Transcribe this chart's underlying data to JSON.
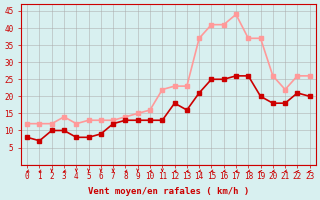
{
  "x": [
    0,
    1,
    2,
    3,
    4,
    5,
    6,
    7,
    8,
    9,
    10,
    11,
    12,
    13,
    14,
    15,
    16,
    17,
    18,
    19,
    20,
    21,
    22,
    23
  ],
  "wind_avg": [
    8,
    7,
    10,
    10,
    8,
    8,
    9,
    12,
    13,
    13,
    13,
    13,
    18,
    16,
    21,
    25,
    25,
    26,
    26,
    20,
    18,
    18,
    21,
    20
  ],
  "wind_gust": [
    12,
    12,
    12,
    14,
    12,
    13,
    13,
    13,
    14,
    15,
    16,
    22,
    23,
    23,
    37,
    41,
    41,
    44,
    37,
    37,
    26,
    22,
    26,
    26
  ],
  "avg_color": "#cc0000",
  "gust_color": "#ff9999",
  "bg_color": "#d8f0f0",
  "grid_color": "#aaaaaa",
  "axis_color": "#cc0000",
  "xlabel": "Vent moyen/en rafales ( km/h )",
  "ylim": [
    0,
    47
  ],
  "yticks": [
    5,
    10,
    15,
    20,
    25,
    30,
    35,
    40,
    45
  ],
  "xticks": [
    0,
    1,
    2,
    3,
    4,
    5,
    6,
    7,
    8,
    9,
    10,
    11,
    12,
    13,
    14,
    15,
    16,
    17,
    18,
    19,
    20,
    21,
    22,
    23
  ],
  "marker_size": 3,
  "line_width": 1.2
}
